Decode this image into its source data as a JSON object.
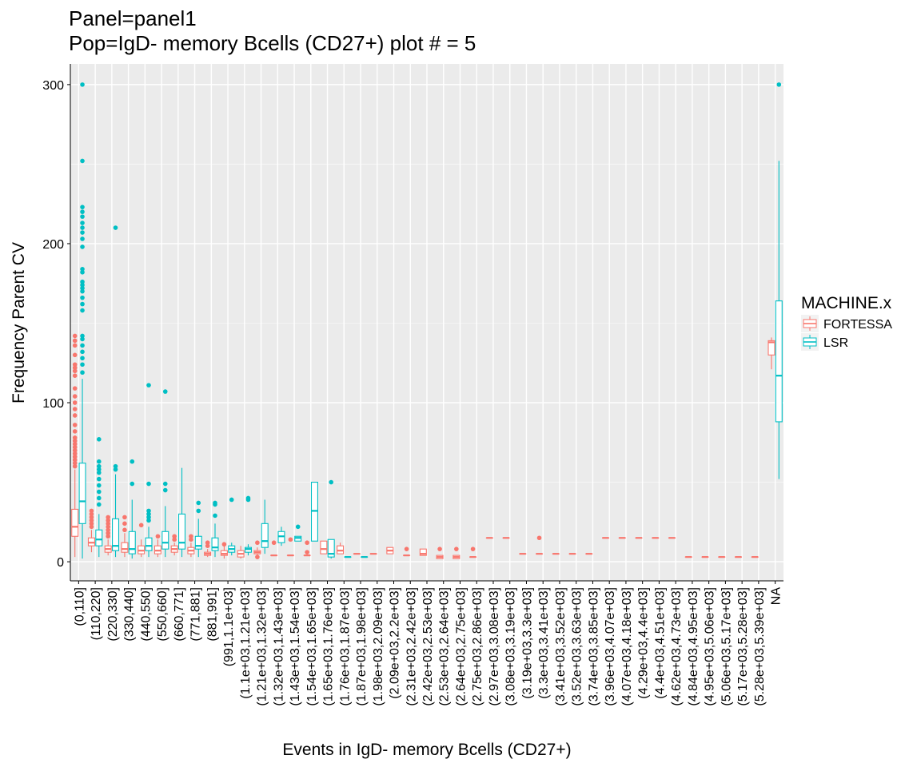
{
  "chart_data": {
    "type": "box",
    "title": "Panel=panel1",
    "subtitle": "Pop=IgD- memory Bcells (CD27+) plot # = 5",
    "xlabel": "Events in IgD- memory Bcells (CD27+)",
    "ylabel": "Frequency Parent CV",
    "ylim": [
      -12,
      313
    ],
    "yticks": [
      0,
      100,
      200,
      300
    ],
    "grid": true,
    "legend_position": "right",
    "legend_title": "MACHINE.x",
    "series": [
      {
        "name": "FORTESSA",
        "color": "#F8766D"
      },
      {
        "name": "LSR",
        "color": "#00BFC4"
      }
    ],
    "categories": [
      "(0,110]",
      "(110,220]",
      "(220,330]",
      "(330,440]",
      "(440,550]",
      "(550,660]",
      "(660,771]",
      "(771,881]",
      "(881,991]",
      "(991,1.1e+03]",
      "(1.1e+03,1.21e+03]",
      "(1.21e+03,1.32e+03]",
      "(1.32e+03,1.43e+03]",
      "(1.43e+03,1.54e+03]",
      "(1.54e+03,1.65e+03]",
      "(1.65e+03,1.76e+03]",
      "(1.76e+03,1.87e+03]",
      "(1.87e+03,1.98e+03]",
      "(1.98e+03,2.09e+03]",
      "(2.09e+03,2.2e+03]",
      "(2.31e+03,2.42e+03]",
      "(2.42e+03,2.53e+03]",
      "(2.53e+03,2.64e+03]",
      "(2.64e+03,2.75e+03]",
      "(2.75e+03,2.86e+03]",
      "(2.97e+03,3.08e+03]",
      "(3.08e+03,3.19e+03]",
      "(3.19e+03,3.3e+03]",
      "(3.3e+03,3.41e+03]",
      "(3.41e+03,3.52e+03]",
      "(3.52e+03,3.63e+03]",
      "(3.74e+03,3.85e+03]",
      "(3.96e+03,4.07e+03]",
      "(4.07e+03,4.18e+03]",
      "(4.29e+03,4.4e+03]",
      "(4.4e+03,4.51e+03]",
      "(4.62e+03,4.73e+03]",
      "(4.84e+03,4.95e+03]",
      "(4.95e+03,5.06e+03]",
      "(5.06e+03,5.17e+03]",
      "(5.17e+03,5.28e+03]",
      "(5.28e+03,5.39e+03]",
      "NA"
    ],
    "boxes": [
      {
        "cat": 0,
        "series": "FORTESSA",
        "whislo": 3,
        "q1": 16,
        "med": 22,
        "q3": 33,
        "whishi": 58,
        "outliers": [
          60,
          62,
          64,
          66,
          68,
          70,
          72,
          74,
          76,
          78,
          82,
          86,
          92,
          96,
          100,
          104,
          109,
          117,
          120,
          122,
          124,
          130,
          136,
          139,
          142
        ]
      },
      {
        "cat": 0,
        "series": "LSR",
        "whislo": 2,
        "q1": 24,
        "med": 38,
        "q3": 62,
        "whishi": 115,
        "outliers": [
          119,
          124,
          128,
          132,
          136,
          140,
          142,
          158,
          162,
          166,
          170,
          172,
          174,
          176,
          182,
          184,
          198,
          203,
          207,
          210,
          213,
          217,
          220,
          223,
          252,
          300
        ]
      },
      {
        "cat": 1,
        "series": "FORTESSA",
        "whislo": 6,
        "q1": 10,
        "med": 12,
        "q3": 15,
        "whishi": 20,
        "outliers": [
          22,
          24,
          26,
          28,
          30,
          32
        ]
      },
      {
        "cat": 1,
        "series": "LSR",
        "whislo": 3,
        "q1": 10,
        "med": 14,
        "q3": 20,
        "whishi": 30,
        "outliers": [
          36,
          40,
          44,
          48,
          52,
          56,
          58,
          60,
          63,
          77
        ]
      },
      {
        "cat": 2,
        "series": "FORTESSA",
        "whislo": 4,
        "q1": 6,
        "med": 8,
        "q3": 10,
        "whishi": 14,
        "outliers": [
          16,
          18,
          20,
          22,
          24,
          26,
          28
        ]
      },
      {
        "cat": 2,
        "series": "LSR",
        "whislo": 3,
        "q1": 7,
        "med": 10,
        "q3": 27,
        "whishi": 55,
        "outliers": [
          58,
          60,
          210
        ]
      },
      {
        "cat": 3,
        "series": "FORTESSA",
        "whislo": 3,
        "q1": 6,
        "med": 8,
        "q3": 12,
        "whishi": 18,
        "outliers": [
          20,
          24,
          28
        ]
      },
      {
        "cat": 3,
        "series": "LSR",
        "whislo": 2,
        "q1": 5,
        "med": 8,
        "q3": 19,
        "whishi": 39,
        "outliers": [
          49,
          63
        ]
      },
      {
        "cat": 4,
        "series": "FORTESSA",
        "whislo": 3,
        "q1": 5,
        "med": 7,
        "q3": 10,
        "whishi": 14,
        "outliers": [
          23
        ]
      },
      {
        "cat": 4,
        "series": "LSR",
        "whislo": 3,
        "q1": 7,
        "med": 10,
        "q3": 15,
        "whishi": 22,
        "outliers": [
          26,
          28,
          30,
          32,
          49,
          111
        ]
      },
      {
        "cat": 5,
        "series": "FORTESSA",
        "whislo": 3,
        "q1": 5,
        "med": 7,
        "q3": 10,
        "whishi": 14,
        "outliers": [
          16
        ]
      },
      {
        "cat": 5,
        "series": "LSR",
        "whislo": 3,
        "q1": 8,
        "med": 12,
        "q3": 19,
        "whishi": 35,
        "outliers": [
          45,
          49,
          107
        ]
      },
      {
        "cat": 6,
        "series": "FORTESSA",
        "whislo": 4,
        "q1": 6,
        "med": 8,
        "q3": 10,
        "whishi": 12,
        "outliers": [
          14,
          16
        ]
      },
      {
        "cat": 6,
        "series": "LSR",
        "whislo": 3,
        "q1": 8,
        "med": 12,
        "q3": 30,
        "whishi": 59,
        "outliers": []
      },
      {
        "cat": 7,
        "series": "FORTESSA",
        "whislo": 3,
        "q1": 5,
        "med": 7,
        "q3": 9,
        "whishi": 12,
        "outliers": [
          14,
          16
        ]
      },
      {
        "cat": 7,
        "series": "LSR",
        "whislo": 3,
        "q1": 8,
        "med": 10,
        "q3": 16,
        "whishi": 27,
        "outliers": [
          32,
          37
        ]
      },
      {
        "cat": 8,
        "series": "FORTESSA",
        "whislo": 3,
        "q1": 4,
        "med": 5,
        "q3": 6,
        "whishi": 8,
        "outliers": [
          10,
          12
        ]
      },
      {
        "cat": 8,
        "series": "LSR",
        "whislo": 3,
        "q1": 7,
        "med": 9,
        "q3": 15,
        "whishi": 24,
        "outliers": [
          29,
          36,
          37
        ]
      },
      {
        "cat": 9,
        "series": "FORTESSA",
        "whislo": 2,
        "q1": 4,
        "med": 5,
        "q3": 7,
        "whishi": 10,
        "outliers": [
          11
        ]
      },
      {
        "cat": 9,
        "series": "LSR",
        "whislo": 4,
        "q1": 6,
        "med": 8,
        "q3": 10,
        "whishi": 12,
        "outliers": [
          39
        ]
      },
      {
        "cat": 10,
        "series": "FORTESSA",
        "whislo": 2,
        "q1": 3,
        "med": 5,
        "q3": 7,
        "whishi": 10,
        "outliers": []
      },
      {
        "cat": 10,
        "series": "LSR",
        "whislo": 4,
        "q1": 6,
        "med": 8,
        "q3": 9,
        "whishi": 11,
        "outliers": [
          39,
          40
        ]
      },
      {
        "cat": 11,
        "series": "FORTESSA",
        "whislo": 4,
        "q1": 5,
        "med": 6,
        "q3": 7,
        "whishi": 9,
        "outliers": [
          3,
          12
        ]
      },
      {
        "cat": 11,
        "series": "LSR",
        "whislo": 5,
        "q1": 9,
        "med": 13,
        "q3": 24,
        "whishi": 39,
        "outliers": []
      },
      {
        "cat": 12,
        "series": "FORTESSA",
        "whislo": 4,
        "q1": 4,
        "med": 4,
        "q3": 4,
        "whishi": 4,
        "outliers": [
          12
        ]
      },
      {
        "cat": 12,
        "series": "LSR",
        "whislo": 10,
        "q1": 12,
        "med": 16,
        "q3": 19,
        "whishi": 22,
        "outliers": []
      },
      {
        "cat": 13,
        "series": "FORTESSA",
        "whislo": 4,
        "q1": 4,
        "med": 4,
        "q3": 4,
        "whishi": 4,
        "outliers": [
          14
        ]
      },
      {
        "cat": 13,
        "series": "LSR",
        "whislo": 13,
        "q1": 13,
        "med": 15,
        "q3": 16,
        "whishi": 16,
        "outliers": [
          22
        ]
      },
      {
        "cat": 14,
        "series": "FORTESSA",
        "whislo": 4,
        "q1": 4,
        "med": 4,
        "q3": 4,
        "whishi": 4,
        "outliers": [
          6,
          12
        ]
      },
      {
        "cat": 14,
        "series": "LSR",
        "whislo": 13,
        "q1": 13,
        "med": 32,
        "q3": 50,
        "whishi": 50,
        "outliers": []
      },
      {
        "cat": 15,
        "series": "FORTESSA",
        "whislo": 5,
        "q1": 5,
        "med": 8,
        "q3": 13,
        "whishi": 13,
        "outliers": []
      },
      {
        "cat": 15,
        "series": "LSR",
        "whislo": 2,
        "q1": 3,
        "med": 5,
        "q3": 14,
        "whishi": 14,
        "outliers": [
          50
        ]
      },
      {
        "cat": 16,
        "series": "FORTESSA",
        "whislo": 5,
        "q1": 5,
        "med": 7,
        "q3": 10,
        "whishi": 12,
        "outliers": []
      },
      {
        "cat": 16,
        "series": "LSR",
        "whislo": 3,
        "q1": 3,
        "med": 3,
        "q3": 3,
        "whishi": 3,
        "outliers": []
      },
      {
        "cat": 17,
        "series": "FORTESSA",
        "whislo": 5,
        "q1": 5,
        "med": 5,
        "q3": 5,
        "whishi": 5,
        "outliers": []
      },
      {
        "cat": 17,
        "series": "LSR",
        "whislo": 3,
        "q1": 3,
        "med": 3,
        "q3": 3,
        "whishi": 3,
        "outliers": []
      },
      {
        "cat": 18,
        "series": "FORTESSA",
        "whislo": 5,
        "q1": 5,
        "med": 5,
        "q3": 5,
        "whishi": 5,
        "outliers": []
      },
      {
        "cat": 19,
        "series": "FORTESSA",
        "whislo": 5,
        "q1": 5,
        "med": 7,
        "q3": 9,
        "whishi": 9,
        "outliers": []
      },
      {
        "cat": 20,
        "series": "FORTESSA",
        "whislo": 4,
        "q1": 4,
        "med": 4,
        "q3": 4,
        "whishi": 4,
        "outliers": [
          8
        ]
      },
      {
        "cat": 21,
        "series": "FORTESSA",
        "whislo": 4,
        "q1": 4,
        "med": 5,
        "q3": 8,
        "whishi": 8,
        "outliers": []
      },
      {
        "cat": 22,
        "series": "FORTESSA",
        "whislo": 2,
        "q1": 2,
        "med": 3,
        "q3": 4,
        "whishi": 4,
        "outliers": [
          8
        ]
      },
      {
        "cat": 23,
        "series": "FORTESSA",
        "whislo": 2,
        "q1": 2,
        "med": 3,
        "q3": 4,
        "whishi": 4,
        "outliers": [
          8
        ]
      },
      {
        "cat": 24,
        "series": "FORTESSA",
        "whislo": 3,
        "q1": 3,
        "med": 3,
        "q3": 3,
        "whishi": 3,
        "outliers": [
          8
        ]
      },
      {
        "cat": 25,
        "series": "FORTESSA",
        "whislo": 15,
        "q1": 15,
        "med": 15,
        "q3": 15,
        "whishi": 15,
        "outliers": []
      },
      {
        "cat": 26,
        "series": "FORTESSA",
        "whislo": 15,
        "q1": 15,
        "med": 15,
        "q3": 15,
        "whishi": 15,
        "outliers": []
      },
      {
        "cat": 27,
        "series": "FORTESSA",
        "whislo": 5,
        "q1": 5,
        "med": 5,
        "q3": 5,
        "whishi": 5,
        "outliers": []
      },
      {
        "cat": 28,
        "series": "FORTESSA",
        "whislo": 5,
        "q1": 5,
        "med": 5,
        "q3": 5,
        "whishi": 5,
        "outliers": [
          15
        ]
      },
      {
        "cat": 29,
        "series": "FORTESSA",
        "whislo": 5,
        "q1": 5,
        "med": 5,
        "q3": 5,
        "whishi": 5,
        "outliers": []
      },
      {
        "cat": 30,
        "series": "FORTESSA",
        "whislo": 5,
        "q1": 5,
        "med": 5,
        "q3": 5,
        "whishi": 5,
        "outliers": []
      },
      {
        "cat": 31,
        "series": "FORTESSA",
        "whislo": 5,
        "q1": 5,
        "med": 5,
        "q3": 5,
        "whishi": 5,
        "outliers": []
      },
      {
        "cat": 32,
        "series": "FORTESSA",
        "whislo": 15,
        "q1": 15,
        "med": 15,
        "q3": 15,
        "whishi": 15,
        "outliers": []
      },
      {
        "cat": 33,
        "series": "FORTESSA",
        "whislo": 15,
        "q1": 15,
        "med": 15,
        "q3": 15,
        "whishi": 15,
        "outliers": []
      },
      {
        "cat": 34,
        "series": "FORTESSA",
        "whislo": 15,
        "q1": 15,
        "med": 15,
        "q3": 15,
        "whishi": 15,
        "outliers": []
      },
      {
        "cat": 35,
        "series": "FORTESSA",
        "whislo": 15,
        "q1": 15,
        "med": 15,
        "q3": 15,
        "whishi": 15,
        "outliers": []
      },
      {
        "cat": 36,
        "series": "FORTESSA",
        "whislo": 15,
        "q1": 15,
        "med": 15,
        "q3": 15,
        "whishi": 15,
        "outliers": []
      },
      {
        "cat": 37,
        "series": "FORTESSA",
        "whislo": 3,
        "q1": 3,
        "med": 3,
        "q3": 3,
        "whishi": 3,
        "outliers": []
      },
      {
        "cat": 38,
        "series": "FORTESSA",
        "whislo": 3,
        "q1": 3,
        "med": 3,
        "q3": 3,
        "whishi": 3,
        "outliers": []
      },
      {
        "cat": 39,
        "series": "FORTESSA",
        "whislo": 3,
        "q1": 3,
        "med": 3,
        "q3": 3,
        "whishi": 3,
        "outliers": []
      },
      {
        "cat": 40,
        "series": "FORTESSA",
        "whislo": 3,
        "q1": 3,
        "med": 3,
        "q3": 3,
        "whishi": 3,
        "outliers": []
      },
      {
        "cat": 41,
        "series": "FORTESSA",
        "whislo": 3,
        "q1": 3,
        "med": 3,
        "q3": 3,
        "whishi": 3,
        "outliers": []
      },
      {
        "cat": 42,
        "series": "FORTESSA",
        "whislo": 121,
        "q1": 130,
        "med": 138,
        "q3": 139,
        "whishi": 141,
        "outliers": []
      },
      {
        "cat": 42,
        "series": "LSR",
        "whislo": 52,
        "q1": 88,
        "med": 117,
        "q3": 164,
        "whishi": 252,
        "outliers": [
          300
        ]
      }
    ]
  }
}
